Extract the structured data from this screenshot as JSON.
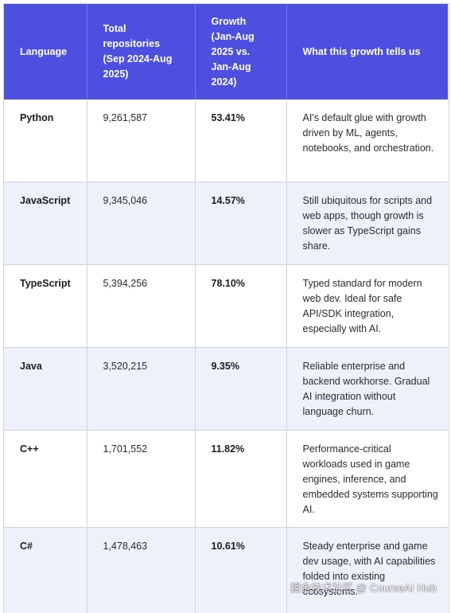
{
  "table": {
    "headers": [
      "Language",
      "Total repositories (Sep 2024-Aug 2025)",
      "Growth (Jan-Aug 2025 vs. Jan-Aug 2024)",
      "What this growth tells us"
    ],
    "rows": [
      {
        "language": "Python",
        "repositories": "9,261,587",
        "growth": "53.41%",
        "insight": "AI's default glue with growth driven by ML, agents, notebooks, and orchestration."
      },
      {
        "language": "JavaScript",
        "repositories": "9,345,046",
        "growth": "14.57%",
        "insight": "Still ubiquitous for scripts and web apps, though growth is slower as TypeScript gains share."
      },
      {
        "language": "TypeScript",
        "repositories": "5,394,256",
        "growth": "78.10%",
        "insight": "Typed standard for modern web dev. Ideal for safe API/SDK integration, especially with AI."
      },
      {
        "language": "Java",
        "repositories": "3,520,215",
        "growth": "9.35%",
        "insight": "Reliable enterprise and backend workhorse. Gradual AI integration without language churn."
      },
      {
        "language": "C++",
        "repositories": "1,701,552",
        "growth": "11.82%",
        "insight": "Performance-critical workloads used in game engines, inference, and embedded systems supporting AI."
      },
      {
        "language": "C#",
        "repositories": "1,478,463",
        "growth": "10.61%",
        "insight": "Steady enterprise and game dev usage, with AI capabilities folded into existing ecosystems."
      }
    ]
  },
  "watermark": "掘金技术社区 @ CourseAI Hub",
  "colors": {
    "header_bg": "#4c4fe0",
    "header_text": "#ffffff",
    "row_alt_bg": "#eef1fb",
    "border": "#cfd3e6"
  }
}
